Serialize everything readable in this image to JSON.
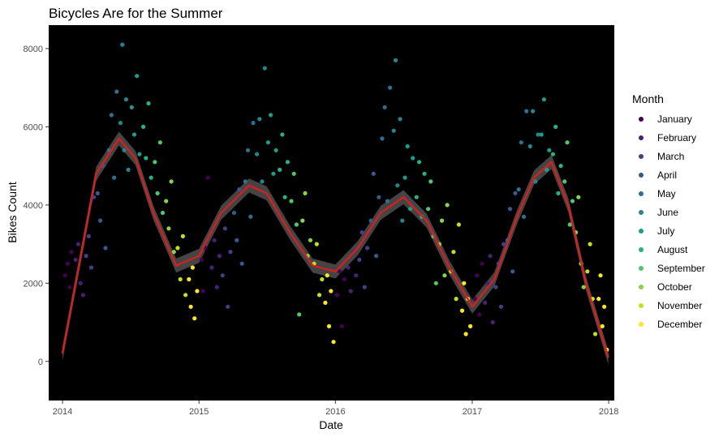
{
  "chart_data": {
    "type": "scatter",
    "title": "Bicycles Are for the Summer",
    "xlabel": "Date",
    "ylabel": "Bikes Count",
    "x_ticks": [
      "2014",
      "2015",
      "2016",
      "2017",
      "2018"
    ],
    "y_ticks": [
      "0",
      "2000",
      "4000",
      "6000",
      "8000"
    ],
    "xlim": [
      "2013-11-25",
      "2018-01-16"
    ],
    "ylim": [
      -1000,
      8600
    ],
    "panel_background": "#000000",
    "grid": false,
    "legend": {
      "title": "Month",
      "position": "right",
      "entries": [
        {
          "label": "January",
          "color": "#440154"
        },
        {
          "label": "February",
          "color": "#482173"
        },
        {
          "label": "March",
          "color": "#433E85"
        },
        {
          "label": "April",
          "color": "#38598C"
        },
        {
          "label": "May",
          "color": "#2D708E"
        },
        {
          "label": "June",
          "color": "#25858E"
        },
        {
          "label": "July",
          "color": "#1E9B8A"
        },
        {
          "label": "August",
          "color": "#2BB07F"
        },
        {
          "label": "September",
          "color": "#51C56A"
        },
        {
          "label": "October",
          "color": "#85D54A"
        },
        {
          "label": "November",
          "color": "#C2DF23"
        },
        {
          "label": "December",
          "color": "#FDE725"
        }
      ]
    },
    "points_by_month": [
      {
        "month": "January",
        "points": [
          [
            "2014-01-08",
            2200
          ],
          [
            "2014-01-15",
            2500
          ],
          [
            "2014-01-20",
            1900
          ],
          [
            "2014-01-25",
            2800
          ],
          [
            "2015-01-08",
            2600
          ],
          [
            "2015-01-12",
            1800
          ],
          [
            "2015-01-18",
            2900
          ],
          [
            "2015-01-25",
            4700
          ],
          [
            "2016-01-06",
            1700
          ],
          [
            "2016-01-12",
            2300
          ],
          [
            "2016-01-18",
            900
          ],
          [
            "2016-01-25",
            2100
          ],
          [
            "2017-01-08",
            1600
          ],
          [
            "2017-01-14",
            2200
          ],
          [
            "2017-01-20",
            1200
          ],
          [
            "2017-01-27",
            2500
          ]
        ]
      },
      {
        "month": "February",
        "points": [
          [
            "2014-02-05",
            2600
          ],
          [
            "2014-02-12",
            3000
          ],
          [
            "2014-02-18",
            2000
          ],
          [
            "2014-02-25",
            1700
          ],
          [
            "2015-02-04",
            2400
          ],
          [
            "2015-02-11",
            3100
          ],
          [
            "2015-02-18",
            1900
          ],
          [
            "2015-02-25",
            2700
          ],
          [
            "2016-02-04",
            2400
          ],
          [
            "2016-02-11",
            1800
          ],
          [
            "2016-02-18",
            2800
          ],
          [
            "2016-02-25",
            2200
          ],
          [
            "2017-02-04",
            1500
          ],
          [
            "2017-02-11",
            2000
          ],
          [
            "2017-02-18",
            2700
          ],
          [
            "2017-02-25",
            1000
          ]
        ]
      },
      {
        "month": "March",
        "points": [
          [
            "2014-03-05",
            2700
          ],
          [
            "2014-03-12",
            3200
          ],
          [
            "2014-03-19",
            2400
          ],
          [
            "2014-03-26",
            4200
          ],
          [
            "2015-03-05",
            2200
          ],
          [
            "2015-03-12",
            3400
          ],
          [
            "2015-03-19",
            1400
          ],
          [
            "2015-03-26",
            2800
          ],
          [
            "2016-03-05",
            2600
          ],
          [
            "2016-03-12",
            3300
          ],
          [
            "2016-03-19",
            1900
          ],
          [
            "2016-03-26",
            2900
          ],
          [
            "2017-03-05",
            1900
          ],
          [
            "2017-03-12",
            2500
          ],
          [
            "2017-03-19",
            1400
          ],
          [
            "2017-03-26",
            3000
          ]
        ]
      },
      {
        "month": "April",
        "points": [
          [
            "2014-04-05",
            4300
          ],
          [
            "2014-04-12",
            3600
          ],
          [
            "2014-04-19",
            5000
          ],
          [
            "2014-04-26",
            2900
          ],
          [
            "2015-04-05",
            3800
          ],
          [
            "2015-04-12",
            3100
          ],
          [
            "2015-04-19",
            4400
          ],
          [
            "2015-04-26",
            2500
          ],
          [
            "2016-04-05",
            3600
          ],
          [
            "2016-04-12",
            4800
          ],
          [
            "2016-04-19",
            2700
          ],
          [
            "2016-04-26",
            4200
          ],
          [
            "2017-04-05",
            3100
          ],
          [
            "2017-04-12",
            3900
          ],
          [
            "2017-04-19",
            2300
          ],
          [
            "2017-04-26",
            4300
          ]
        ]
      },
      {
        "month": "May",
        "points": [
          [
            "2014-05-05",
            5400
          ],
          [
            "2014-05-12",
            6300
          ],
          [
            "2014-05-19",
            4700
          ],
          [
            "2014-05-26",
            6900
          ],
          [
            "2015-05-05",
            4600
          ],
          [
            "2015-05-12",
            5400
          ],
          [
            "2015-05-19",
            3700
          ],
          [
            "2015-05-26",
            6100
          ],
          [
            "2016-05-05",
            5700
          ],
          [
            "2016-05-12",
            6500
          ],
          [
            "2016-05-19",
            4100
          ],
          [
            "2016-05-26",
            7000
          ],
          [
            "2017-05-05",
            4400
          ],
          [
            "2017-05-12",
            5600
          ],
          [
            "2017-05-19",
            3700
          ],
          [
            "2017-05-26",
            6400
          ]
        ]
      },
      {
        "month": "June",
        "points": [
          [
            "2014-06-05",
            6100
          ],
          [
            "2014-06-10",
            8100
          ],
          [
            "2014-06-15",
            5400
          ],
          [
            "2014-06-20",
            6700
          ],
          [
            "2014-06-26",
            4900
          ],
          [
            "2015-06-05",
            5300
          ],
          [
            "2015-06-12",
            6200
          ],
          [
            "2015-06-19",
            4600
          ],
          [
            "2015-06-26",
            7500
          ],
          [
            "2016-06-05",
            5900
          ],
          [
            "2016-06-10",
            7700
          ],
          [
            "2016-06-15",
            4500
          ],
          [
            "2016-06-22",
            6200
          ],
          [
            "2016-06-28",
            3600
          ],
          [
            "2017-06-05",
            5500
          ],
          [
            "2017-06-12",
            6400
          ],
          [
            "2017-06-19",
            4600
          ],
          [
            "2017-06-26",
            5800
          ]
        ]
      },
      {
        "month": "July",
        "points": [
          [
            "2014-07-05",
            6500
          ],
          [
            "2014-07-12",
            5800
          ],
          [
            "2014-07-19",
            7300
          ],
          [
            "2014-07-26",
            5300
          ],
          [
            "2015-07-05",
            5600
          ],
          [
            "2015-07-12",
            6300
          ],
          [
            "2015-07-19",
            4800
          ],
          [
            "2015-07-26",
            5400
          ],
          [
            "2016-07-05",
            4700
          ],
          [
            "2016-07-12",
            5500
          ],
          [
            "2016-07-19",
            3900
          ],
          [
            "2016-07-26",
            5200
          ],
          [
            "2017-07-05",
            5800
          ],
          [
            "2017-07-12",
            6700
          ],
          [
            "2017-07-19",
            4900
          ],
          [
            "2017-07-26",
            5400
          ]
        ]
      },
      {
        "month": "August",
        "points": [
          [
            "2014-08-05",
            6000
          ],
          [
            "2014-08-12",
            5200
          ],
          [
            "2014-08-19",
            6600
          ],
          [
            "2014-08-26",
            4700
          ],
          [
            "2015-08-05",
            4900
          ],
          [
            "2015-08-12",
            5800
          ],
          [
            "2015-08-19",
            4200
          ],
          [
            "2015-08-26",
            5100
          ],
          [
            "2016-08-05",
            4200
          ],
          [
            "2016-08-12",
            5100
          ],
          [
            "2016-08-19",
            3700
          ],
          [
            "2016-08-26",
            4800
          ],
          [
            "2017-08-05",
            5300
          ],
          [
            "2017-08-12",
            6000
          ],
          [
            "2017-08-19",
            4300
          ],
          [
            "2017-08-26",
            5000
          ]
        ]
      },
      {
        "month": "September",
        "points": [
          [
            "2014-09-05",
            5100
          ],
          [
            "2014-09-12",
            4300
          ],
          [
            "2014-09-19",
            5600
          ],
          [
            "2014-09-26",
            3800
          ],
          [
            "2015-09-05",
            4100
          ],
          [
            "2015-09-12",
            4800
          ],
          [
            "2015-09-19",
            3500
          ],
          [
            "2015-09-26",
            1200
          ],
          [
            "2016-09-05",
            3900
          ],
          [
            "2016-09-12",
            4600
          ],
          [
            "2016-09-19",
            3200
          ],
          [
            "2016-09-26",
            2000
          ],
          [
            "2017-09-05",
            4600
          ],
          [
            "2017-09-12",
            5600
          ],
          [
            "2017-09-19",
            3500
          ],
          [
            "2017-09-26",
            4100
          ]
        ]
      },
      {
        "month": "October",
        "points": [
          [
            "2014-10-05",
            4100
          ],
          [
            "2014-10-12",
            3400
          ],
          [
            "2014-10-19",
            4600
          ],
          [
            "2014-10-26",
            2800
          ],
          [
            "2015-10-05",
            3600
          ],
          [
            "2015-10-12",
            4300
          ],
          [
            "2015-10-19",
            2700
          ],
          [
            "2015-10-26",
            3100
          ],
          [
            "2016-10-05",
            3000
          ],
          [
            "2016-10-12",
            3600
          ],
          [
            "2016-10-19",
            2200
          ],
          [
            "2016-10-26",
            4000
          ],
          [
            "2017-10-05",
            3300
          ],
          [
            "2017-10-12",
            4200
          ],
          [
            "2017-10-19",
            2500
          ],
          [
            "2017-10-26",
            1900
          ]
        ]
      },
      {
        "month": "November",
        "points": [
          [
            "2014-11-05",
            2900
          ],
          [
            "2014-11-12",
            2100
          ],
          [
            "2014-11-19",
            3200
          ],
          [
            "2014-11-26",
            1700
          ],
          [
            "2015-11-05",
            2500
          ],
          [
            "2015-11-12",
            3000
          ],
          [
            "2015-11-19",
            1700
          ],
          [
            "2015-11-26",
            2100
          ],
          [
            "2016-11-05",
            2300
          ],
          [
            "2016-11-12",
            2800
          ],
          [
            "2016-11-19",
            1600
          ],
          [
            "2016-11-26",
            3500
          ],
          [
            "2017-11-05",
            2300
          ],
          [
            "2017-11-12",
            3000
          ],
          [
            "2017-11-19",
            1600
          ],
          [
            "2017-11-26",
            700
          ]
        ]
      },
      {
        "month": "December",
        "points": [
          [
            "2014-12-05",
            2100
          ],
          [
            "2014-12-10",
            1400
          ],
          [
            "2014-12-15",
            2400
          ],
          [
            "2014-12-20",
            1100
          ],
          [
            "2014-12-27",
            1800
          ],
          [
            "2015-12-05",
            1500
          ],
          [
            "2015-12-10",
            2200
          ],
          [
            "2015-12-15",
            900
          ],
          [
            "2015-12-20",
            1800
          ],
          [
            "2015-12-27",
            500
          ],
          [
            "2016-12-05",
            1300
          ],
          [
            "2016-12-10",
            2000
          ],
          [
            "2016-12-15",
            700
          ],
          [
            "2016-12-20",
            1600
          ],
          [
            "2016-12-27",
            900
          ],
          [
            "2017-12-05",
            1600
          ],
          [
            "2017-12-10",
            2200
          ],
          [
            "2017-12-15",
            900
          ],
          [
            "2017-12-20",
            1400
          ],
          [
            "2017-12-27",
            300
          ]
        ]
      }
    ],
    "trend": {
      "color": "#CC2222",
      "band_color": "#505050",
      "points": [
        [
          "2014-01-01",
          200
        ],
        [
          "2014-02-15",
          2500
        ],
        [
          "2014-04-01",
          4800
        ],
        [
          "2014-06-01",
          5700
        ],
        [
          "2014-07-15",
          5200
        ],
        [
          "2014-09-01",
          3800
        ],
        [
          "2014-11-01",
          2450
        ],
        [
          "2015-01-01",
          2700
        ],
        [
          "2015-03-01",
          3800
        ],
        [
          "2015-05-15",
          4500
        ],
        [
          "2015-07-01",
          4300
        ],
        [
          "2015-09-01",
          3300
        ],
        [
          "2015-11-01",
          2450
        ],
        [
          "2016-01-01",
          2300
        ],
        [
          "2016-03-01",
          2900
        ],
        [
          "2016-05-01",
          3800
        ],
        [
          "2016-07-01",
          4200
        ],
        [
          "2016-09-01",
          3600
        ],
        [
          "2016-11-01",
          2400
        ],
        [
          "2017-01-01",
          1400
        ],
        [
          "2017-03-01",
          2100
        ],
        [
          "2017-05-01",
          3700
        ],
        [
          "2017-06-15",
          4700
        ],
        [
          "2017-08-01",
          5100
        ],
        [
          "2017-09-15",
          4000
        ],
        [
          "2017-11-01",
          2000
        ],
        [
          "2017-12-31",
          100
        ]
      ]
    }
  }
}
